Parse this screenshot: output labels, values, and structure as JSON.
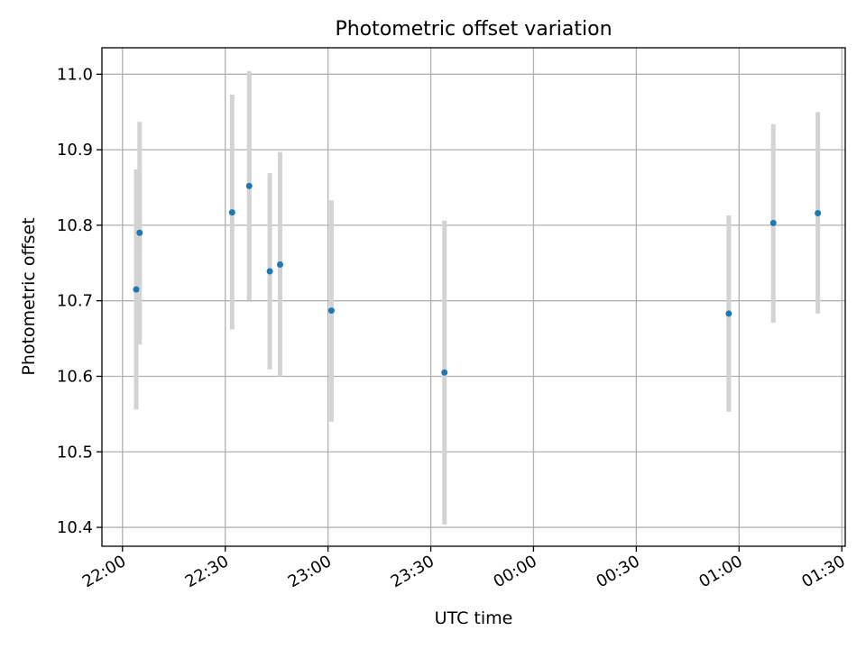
{
  "chart_data": {
    "type": "scatter",
    "title": "Photometric offset variation",
    "xlabel": "UTC time",
    "ylabel": "Photometric offset",
    "x_unit": "time",
    "x_ticks": [
      "22:00",
      "22:30",
      "23:00",
      "23:30",
      "00:00",
      "00:30",
      "01:00",
      "01:30"
    ],
    "y_ticks": [
      "10.4",
      "10.5",
      "10.6",
      "10.7",
      "10.8",
      "10.9",
      "11.0"
    ],
    "xlim": [
      "21:54",
      "01:31"
    ],
    "ylim": [
      10.375,
      11.035
    ],
    "grid": true,
    "colors": {
      "point": "#1f77b4",
      "errorbar": "#d3d3d3",
      "grid": "#b0b0b0"
    },
    "points": [
      {
        "time": "22:04",
        "y": 10.715,
        "ylow": 10.556,
        "yhigh": 10.874
      },
      {
        "time": "22:05",
        "y": 10.79,
        "ylow": 10.642,
        "yhigh": 10.937
      },
      {
        "time": "22:32",
        "y": 10.817,
        "ylow": 10.662,
        "yhigh": 10.973
      },
      {
        "time": "22:37",
        "y": 10.852,
        "ylow": 10.701,
        "yhigh": 11.004
      },
      {
        "time": "22:43",
        "y": 10.739,
        "ylow": 10.609,
        "yhigh": 10.869
      },
      {
        "time": "22:46",
        "y": 10.748,
        "ylow": 10.6,
        "yhigh": 10.897
      },
      {
        "time": "23:01",
        "y": 10.687,
        "ylow": 10.54,
        "yhigh": 10.833
      },
      {
        "time": "23:34",
        "y": 10.605,
        "ylow": 10.404,
        "yhigh": 10.806
      },
      {
        "time": "00:57",
        "y": 10.683,
        "ylow": 10.553,
        "yhigh": 10.813
      },
      {
        "time": "01:10",
        "y": 10.803,
        "ylow": 10.671,
        "yhigh": 10.934
      },
      {
        "time": "01:23",
        "y": 10.816,
        "ylow": 10.683,
        "yhigh": 10.95
      }
    ]
  }
}
